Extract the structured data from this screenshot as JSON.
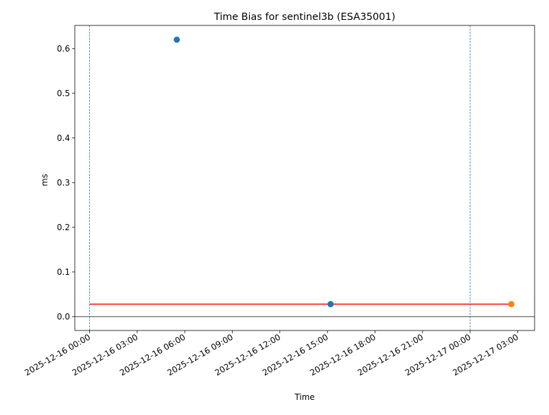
{
  "chart_data": {
    "type": "scatter",
    "title": "Time Bias for sentinel3b (ESA35001)",
    "xlabel": "Time",
    "ylabel": "ms",
    "x_type": "datetime",
    "xlim": [
      "2025-12-15 23:04",
      "2025-12-17 04:04"
    ],
    "ylim": [
      -0.031,
      0.652
    ],
    "grid": false,
    "x_ticks": [
      "2025-12-16 00:00",
      "2025-12-16 03:00",
      "2025-12-16 06:00",
      "2025-12-16 09:00",
      "2025-12-16 12:00",
      "2025-12-16 15:00",
      "2025-12-16 18:00",
      "2025-12-16 21:00",
      "2025-12-17 00:00",
      "2025-12-17 03:00"
    ],
    "y_ticks": [
      0.0,
      0.1,
      0.2,
      0.3,
      0.4,
      0.5,
      0.6
    ],
    "y_tick_labels": [
      "0.0",
      "0.1",
      "0.2",
      "0.3",
      "0.4",
      "0.5",
      "0.6"
    ],
    "series": [
      {
        "color": "#1f77b4",
        "marker": "circle",
        "points": [
          {
            "x": "2025-12-16 05:30",
            "y": 0.62
          },
          {
            "x": "2025-12-16 15:12",
            "y": 0.028
          }
        ]
      },
      {
        "color": "#ff7f0e",
        "marker": "circle",
        "points": [
          {
            "x": "2025-12-17 02:36",
            "y": 0.028
          }
        ]
      }
    ],
    "reference_lines": [
      {
        "kind": "horizontal",
        "y": 0.028,
        "x_from": "2025-12-16 00:00",
        "x_to": "2025-12-17 02:36",
        "color": "#ff0000",
        "style": "solid"
      },
      {
        "kind": "horizontal",
        "y": 0.0,
        "color": "#000000",
        "style": "solid"
      },
      {
        "kind": "vertical",
        "x": "2025-12-16 00:00",
        "color": "#1f77b4",
        "style": "dashed"
      },
      {
        "kind": "vertical",
        "x": "2025-12-17 00:00",
        "color": "#1f77b4",
        "style": "dashed"
      }
    ]
  }
}
